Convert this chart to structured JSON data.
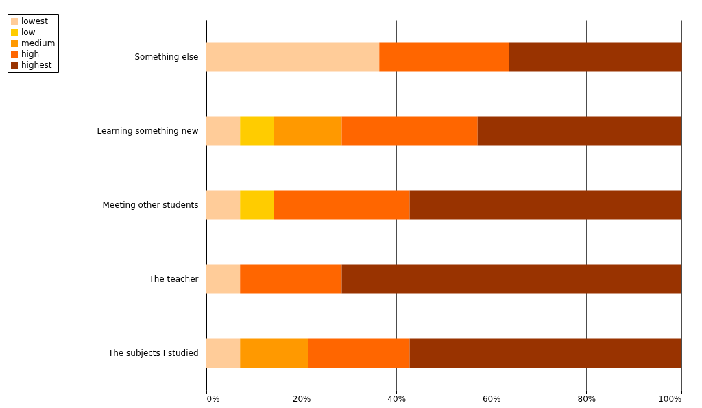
{
  "chart_data": {
    "type": "bar",
    "orientation": "horizontal",
    "stacked": true,
    "categories": [
      "Something else",
      "Learning something new",
      "Meeting other students",
      "The teacher",
      "The subjects I studied"
    ],
    "series": [
      {
        "name": "lowest",
        "color": "#ffcc99",
        "values": [
          36.4,
          7.1,
          7.1,
          7.1,
          7.1
        ]
      },
      {
        "name": "low",
        "color": "#ffcc00",
        "values": [
          0,
          7.1,
          7.1,
          0,
          0
        ]
      },
      {
        "name": "medium",
        "color": "#ff9900",
        "values": [
          0,
          14.3,
          0,
          0,
          14.3
        ]
      },
      {
        "name": "high",
        "color": "#ff6600",
        "values": [
          27.3,
          28.6,
          28.6,
          21.4,
          21.4
        ]
      },
      {
        "name": "highest",
        "color": "#993300",
        "values": [
          36.4,
          42.9,
          57.1,
          71.4,
          57.1
        ]
      }
    ],
    "xlim": [
      0,
      100
    ],
    "xticks": [
      {
        "value": 0,
        "label": "0%"
      },
      {
        "value": 20,
        "label": "20%"
      },
      {
        "value": 40,
        "label": "40%"
      },
      {
        "value": 60,
        "label": "60%"
      },
      {
        "value": 80,
        "label": "80%"
      },
      {
        "value": 100,
        "label": "100%"
      }
    ],
    "grid": "x",
    "legend": "top left"
  }
}
